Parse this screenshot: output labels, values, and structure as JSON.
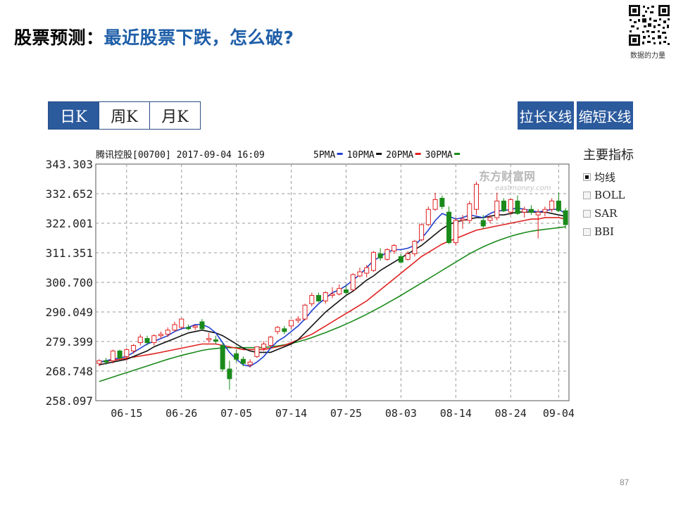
{
  "slide": {
    "title_prefix": "股票预测：",
    "title_main": "最近股票下跌，怎么破?",
    "qr_caption": "数据的力量",
    "page_number": "87"
  },
  "tabs": [
    {
      "label": "日K",
      "active": true
    },
    {
      "label": "周K",
      "active": false
    },
    {
      "label": "月K",
      "active": false
    }
  ],
  "buttons": {
    "stretch": "拉长K线",
    "shrink": "缩短K线"
  },
  "indicators": {
    "title": "主要指标",
    "items": [
      {
        "label": "均线",
        "checked": true
      },
      {
        "label": "BOLL",
        "checked": false
      },
      {
        "label": "SAR",
        "checked": false
      },
      {
        "label": "BBI",
        "checked": false
      }
    ]
  },
  "chart_data": {
    "type": "candlestick",
    "header": "腾讯控股[00700] 2017-09-04 16:09",
    "watermark": "东方财富网",
    "watermark_sub": "eastmoney.com",
    "y_ticks": [
      "343.303",
      "332.652",
      "322.001",
      "311.351",
      "300.700",
      "290.049",
      "279.399",
      "268.748",
      "258.097"
    ],
    "ylim": [
      258.097,
      343.303
    ],
    "x_ticks": [
      {
        "label": "06-15",
        "index": 4
      },
      {
        "label": "06-26",
        "index": 12
      },
      {
        "label": "07-05",
        "index": 20
      },
      {
        "label": "07-14",
        "index": 28
      },
      {
        "label": "07-25",
        "index": 36
      },
      {
        "label": "08-03",
        "index": 44
      },
      {
        "label": "08-14",
        "index": 52
      },
      {
        "label": "08-24",
        "index": 60
      },
      {
        "label": "09-04",
        "index": 67
      }
    ],
    "colors": {
      "up": "#e02020",
      "down": "#1a8a1a",
      "ma5": "#1f3fd0",
      "ma10": "#111111",
      "ma20": "#e02020",
      "ma30": "#1a8a1a"
    },
    "legend": [
      {
        "label": "5PMA",
        "color": "#1f3fd0"
      },
      {
        "label": "10PMA",
        "color": "#111111"
      },
      {
        "label": "20PMA",
        "color": "#e02020"
      },
      {
        "label": "30PMA",
        "color": "#1a8a1a"
      }
    ],
    "candles": [
      [
        271.5,
        273.0,
        270.5,
        272.5
      ],
      [
        272.5,
        273.5,
        271.0,
        272.0
      ],
      [
        272.5,
        276.5,
        271.5,
        276.0
      ],
      [
        276.0,
        276.5,
        273.0,
        273.5
      ],
      [
        274.0,
        277.0,
        272.5,
        276.5
      ],
      [
        276.0,
        278.5,
        275.0,
        278.0
      ],
      [
        279.0,
        282.0,
        278.0,
        281.0
      ],
      [
        280.5,
        281.5,
        278.0,
        279.0
      ],
      [
        279.0,
        282.0,
        278.0,
        281.5
      ],
      [
        281.5,
        283.0,
        280.5,
        282.0
      ],
      [
        282.0,
        284.5,
        281.0,
        283.5
      ],
      [
        283.5,
        286.5,
        283.0,
        285.5
      ],
      [
        284.5,
        287.5,
        284.0,
        287.5
      ],
      [
        284.5,
        285.5,
        283.5,
        284.0
      ],
      [
        284.5,
        285.5,
        283.5,
        285.0
      ],
      [
        286.5,
        287.5,
        283.5,
        284.0
      ],
      [
        280.0,
        282.5,
        279.0,
        280.5
      ],
      [
        280.0,
        281.5,
        278.5,
        279.5
      ],
      [
        278.0,
        279.0,
        268.5,
        269.5
      ],
      [
        269.5,
        272.5,
        262.0,
        266.0
      ],
      [
        275.0,
        276.5,
        272.0,
        273.0
      ],
      [
        273.0,
        274.0,
        270.5,
        271.5
      ],
      [
        271.0,
        273.0,
        270.0,
        272.0
      ],
      [
        274.0,
        277.5,
        273.5,
        277.5
      ],
      [
        277.0,
        279.5,
        276.0,
        278.5
      ],
      [
        278.0,
        281.5,
        277.0,
        281.0
      ],
      [
        283.0,
        285.0,
        282.0,
        284.5
      ],
      [
        284.0,
        285.0,
        282.0,
        283.0
      ],
      [
        285.0,
        287.0,
        284.0,
        287.0
      ],
      [
        287.0,
        288.5,
        286.0,
        287.5
      ],
      [
        287.5,
        293.0,
        287.0,
        292.5
      ],
      [
        293.0,
        297.0,
        292.0,
        296.0
      ],
      [
        296.0,
        297.0,
        293.5,
        294.0
      ],
      [
        294.0,
        297.5,
        293.0,
        297.0
      ],
      [
        296.0,
        299.0,
        295.0,
        296.5
      ],
      [
        296.5,
        300.0,
        296.0,
        298.5
      ],
      [
        298.0,
        299.5,
        296.0,
        297.0
      ],
      [
        298.0,
        304.0,
        297.5,
        303.5
      ],
      [
        303.0,
        306.0,
        302.5,
        304.5
      ],
      [
        304.0,
        307.0,
        302.5,
        306.0
      ],
      [
        305.0,
        312.0,
        304.5,
        311.5
      ],
      [
        311.0,
        313.0,
        308.5,
        309.5
      ],
      [
        309.0,
        313.0,
        308.5,
        312.5
      ],
      [
        312.0,
        314.5,
        311.0,
        314.0
      ],
      [
        310.0,
        311.0,
        307.5,
        308.0
      ],
      [
        309.0,
        312.0,
        308.5,
        311.0
      ],
      [
        311.0,
        316.0,
        310.0,
        315.5
      ],
      [
        316.0,
        322.0,
        315.5,
        321.5
      ],
      [
        321.5,
        328.0,
        321.0,
        327.0
      ],
      [
        327.0,
        333.0,
        326.5,
        330.5
      ],
      [
        331.0,
        332.0,
        327.0,
        328.0
      ],
      [
        326.0,
        328.0,
        314.5,
        315.0
      ],
      [
        315.0,
        324.0,
        314.0,
        323.0
      ],
      [
        323.0,
        325.0,
        320.0,
        323.5
      ],
      [
        323.0,
        330.0,
        322.0,
        329.0
      ],
      [
        327.0,
        337.0,
        325.0,
        336.0
      ],
      [
        323.0,
        325.0,
        320.0,
        321.0
      ],
      [
        323.0,
        325.0,
        322.0,
        324.0
      ],
      [
        324.0,
        333.0,
        323.0,
        330.0
      ],
      [
        330.0,
        331.0,
        326.0,
        326.5
      ],
      [
        326.0,
        331.0,
        325.0,
        330.5
      ],
      [
        330.0,
        332.0,
        325.0,
        325.5
      ],
      [
        326.0,
        328.0,
        324.0,
        327.0
      ],
      [
        327.0,
        328.5,
        325.0,
        326.0
      ],
      [
        325.0,
        327.0,
        316.5,
        326.0
      ],
      [
        326.0,
        328.0,
        324.5,
        327.0
      ],
      [
        327.0,
        331.0,
        326.0,
        330.0
      ],
      [
        330.0,
        333.0,
        326.0,
        326.5
      ],
      [
        326.5,
        327.5,
        320.0,
        321.5
      ]
    ],
    "ma5": [
      272.0,
      272.5,
      273.0,
      273.5,
      274.0,
      275.5,
      277.0,
      278.5,
      279.5,
      280.5,
      281.5,
      283.0,
      284.0,
      284.5,
      285.5,
      285.5,
      284.5,
      282.5,
      279.0,
      275.5,
      273.0,
      271.0,
      270.5,
      272.0,
      274.0,
      277.0,
      279.5,
      281.0,
      283.0,
      285.0,
      287.5,
      290.5,
      293.0,
      295.0,
      297.0,
      298.0,
      299.5,
      301.5,
      303.5,
      306.0,
      308.5,
      310.0,
      311.5,
      312.5,
      312.5,
      313.0,
      314.0,
      316.5,
      319.5,
      323.0,
      325.5,
      324.5,
      323.5,
      324.0,
      325.0,
      324.5,
      324.0,
      325.5,
      326.5,
      326.5,
      327.0,
      327.5,
      327.0,
      326.5,
      326.0,
      326.5,
      327.0,
      327.0,
      325.5
    ],
    "ma10": [
      271.0,
      271.5,
      272.0,
      272.5,
      273.0,
      274.0,
      275.0,
      276.0,
      277.5,
      278.5,
      279.5,
      280.5,
      281.5,
      282.5,
      283.0,
      283.5,
      283.0,
      282.5,
      281.5,
      280.0,
      278.5,
      277.0,
      276.0,
      275.5,
      275.5,
      275.5,
      276.5,
      277.5,
      278.5,
      280.0,
      282.5,
      285.0,
      287.5,
      290.0,
      292.0,
      294.0,
      296.0,
      297.5,
      299.5,
      301.5,
      303.0,
      305.0,
      306.5,
      308.0,
      309.5,
      311.0,
      312.5,
      314.0,
      316.0,
      318.0,
      320.0,
      321.5,
      322.5,
      323.0,
      323.5,
      324.0,
      324.0,
      324.5,
      325.0,
      325.0,
      325.5,
      326.0,
      326.0,
      326.0,
      326.0,
      326.0,
      325.5,
      325.0,
      324.5
    ],
    "ma20": [
      272.0,
      272.3,
      272.6,
      273.0,
      273.4,
      273.8,
      274.2,
      274.6,
      275.0,
      275.5,
      276.0,
      276.5,
      277.0,
      277.5,
      278.0,
      278.5,
      278.5,
      278.5,
      278.0,
      277.5,
      277.0,
      276.5,
      276.5,
      276.5,
      276.5,
      277.0,
      277.5,
      278.0,
      279.0,
      280.0,
      281.0,
      282.0,
      283.5,
      285.0,
      286.5,
      288.0,
      289.5,
      291.0,
      292.5,
      294.0,
      296.0,
      298.0,
      300.0,
      302.0,
      304.0,
      306.0,
      308.0,
      310.0,
      311.5,
      313.0,
      314.5,
      315.5,
      316.5,
      317.5,
      318.5,
      319.5,
      320.0,
      320.5,
      321.0,
      321.5,
      322.0,
      322.5,
      323.0,
      323.5,
      323.5,
      324.0,
      324.0,
      324.0,
      323.5
    ],
    "ma30": [
      265.0,
      265.8,
      266.6,
      267.4,
      268.2,
      269.0,
      269.8,
      270.6,
      271.4,
      272.2,
      273.0,
      273.7,
      274.4,
      275.0,
      275.6,
      276.2,
      276.6,
      276.9,
      277.1,
      277.2,
      277.2,
      277.2,
      277.2,
      277.2,
      277.3,
      277.5,
      277.8,
      278.2,
      278.7,
      279.3,
      280.0,
      280.8,
      281.7,
      282.6,
      283.6,
      284.6,
      285.7,
      286.8,
      288.0,
      289.2,
      290.5,
      291.8,
      293.2,
      294.6,
      296.0,
      297.5,
      299.0,
      300.5,
      302.0,
      303.5,
      305.0,
      306.5,
      308.0,
      309.5,
      311.0,
      312.3,
      313.5,
      314.6,
      315.6,
      316.5,
      317.3,
      318.0,
      318.6,
      319.1,
      319.5,
      319.8,
      320.1,
      320.4,
      320.7
    ]
  }
}
